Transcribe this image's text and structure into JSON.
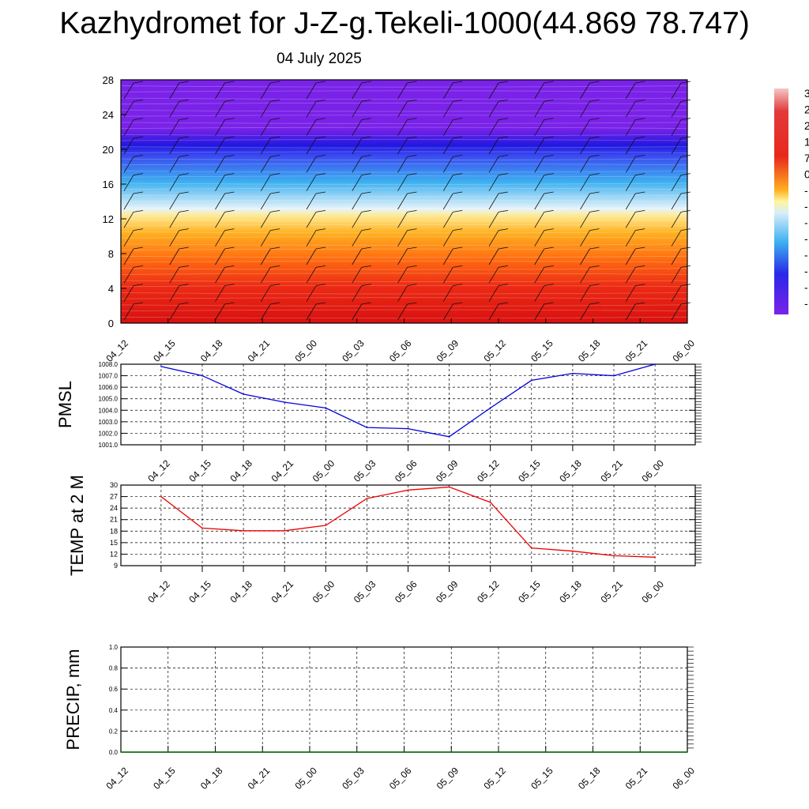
{
  "header": {
    "title": "Kazhydromet for J-Z-g.Tekeli-1000(44.869 78.747)",
    "date": "04 July 2025"
  },
  "chart_data": [
    {
      "type": "heatmap",
      "title": "",
      "xlabel": "",
      "ylabel": "",
      "x": [
        "04_12",
        "04_15",
        "04_18",
        "04_21",
        "05_00",
        "05_03",
        "05_06",
        "05_09",
        "05_12",
        "05_15",
        "05_18",
        "05_21",
        "06_00"
      ],
      "y_ticks": [
        "0",
        "4",
        "8",
        "12",
        "16",
        "20",
        "24",
        "28"
      ],
      "ylim": [
        0,
        28
      ],
      "colorbar_labels": [
        "3",
        "2",
        "2",
        "1",
        "7",
        "0",
        "-",
        "-",
        "-",
        "-",
        "-",
        "-",
        "-",
        "-"
      ],
      "colors": [
        "#7a1fd9",
        "#2a1ae6",
        "#42b4f0",
        "#fff9a0",
        "#ff9a1f",
        "#e6281e",
        "#f2b8b8"
      ],
      "overlay": "wind barbs",
      "grid": false
    },
    {
      "type": "line",
      "ylabel": "PMSL",
      "xlabel": "",
      "x": [
        "04_12",
        "04_15",
        "04_18",
        "04_21",
        "05_00",
        "05_03",
        "05_06",
        "05_09",
        "05_12",
        "05_15",
        "05_18",
        "05_21",
        "06_00"
      ],
      "y_ticks": [
        "1001.0",
        "1002.0",
        "1003.0",
        "1004.0",
        "1005.0",
        "1006.0",
        "1007.0",
        "1008.0"
      ],
      "ylim": [
        1001.0,
        1008.0
      ],
      "series": [
        {
          "values": [
            1007.8,
            1007.0,
            1005.4,
            1004.7,
            1004.2,
            1002.5,
            1002.4,
            1001.7,
            1004.2,
            1006.6,
            1007.2,
            1007.0,
            1008.0
          ]
        }
      ],
      "line_color": "#0000dd",
      "grid": true
    },
    {
      "type": "line",
      "ylabel": "TEMP at 2 M",
      "xlabel": "",
      "x": [
        "04_12",
        "04_15",
        "04_18",
        "04_21",
        "05_00",
        "05_03",
        "05_06",
        "05_09",
        "05_12",
        "05_15",
        "05_18",
        "05_21",
        "06_00"
      ],
      "y_ticks": [
        "9",
        "12",
        "15",
        "18",
        "21",
        "24",
        "27",
        "30"
      ],
      "ylim": [
        9,
        30
      ],
      "series": [
        {
          "values": [
            27.0,
            18.8,
            18.1,
            18.1,
            19.5,
            26.5,
            28.7,
            29.5,
            25.5,
            13.6,
            12.8,
            11.6,
            11.2
          ]
        }
      ],
      "line_color": "#ee0000",
      "grid": true
    },
    {
      "type": "line",
      "ylabel": "PRECIP, mm",
      "xlabel": "",
      "x": [
        "04_12",
        "04_15",
        "04_18",
        "04_21",
        "05_00",
        "05_03",
        "05_06",
        "05_09",
        "05_12",
        "05_15",
        "05_18",
        "05_21",
        "06_00"
      ],
      "y_ticks": [
        "0.0",
        "0.2",
        "0.4",
        "0.6",
        "0.8",
        "1.0"
      ],
      "ylim": [
        0,
        1.0
      ],
      "series": [
        {
          "values": [
            0,
            0,
            0,
            0,
            0,
            0,
            0,
            0,
            0,
            0,
            0,
            0,
            0
          ]
        }
      ],
      "line_color": "#006600",
      "grid": true
    }
  ]
}
